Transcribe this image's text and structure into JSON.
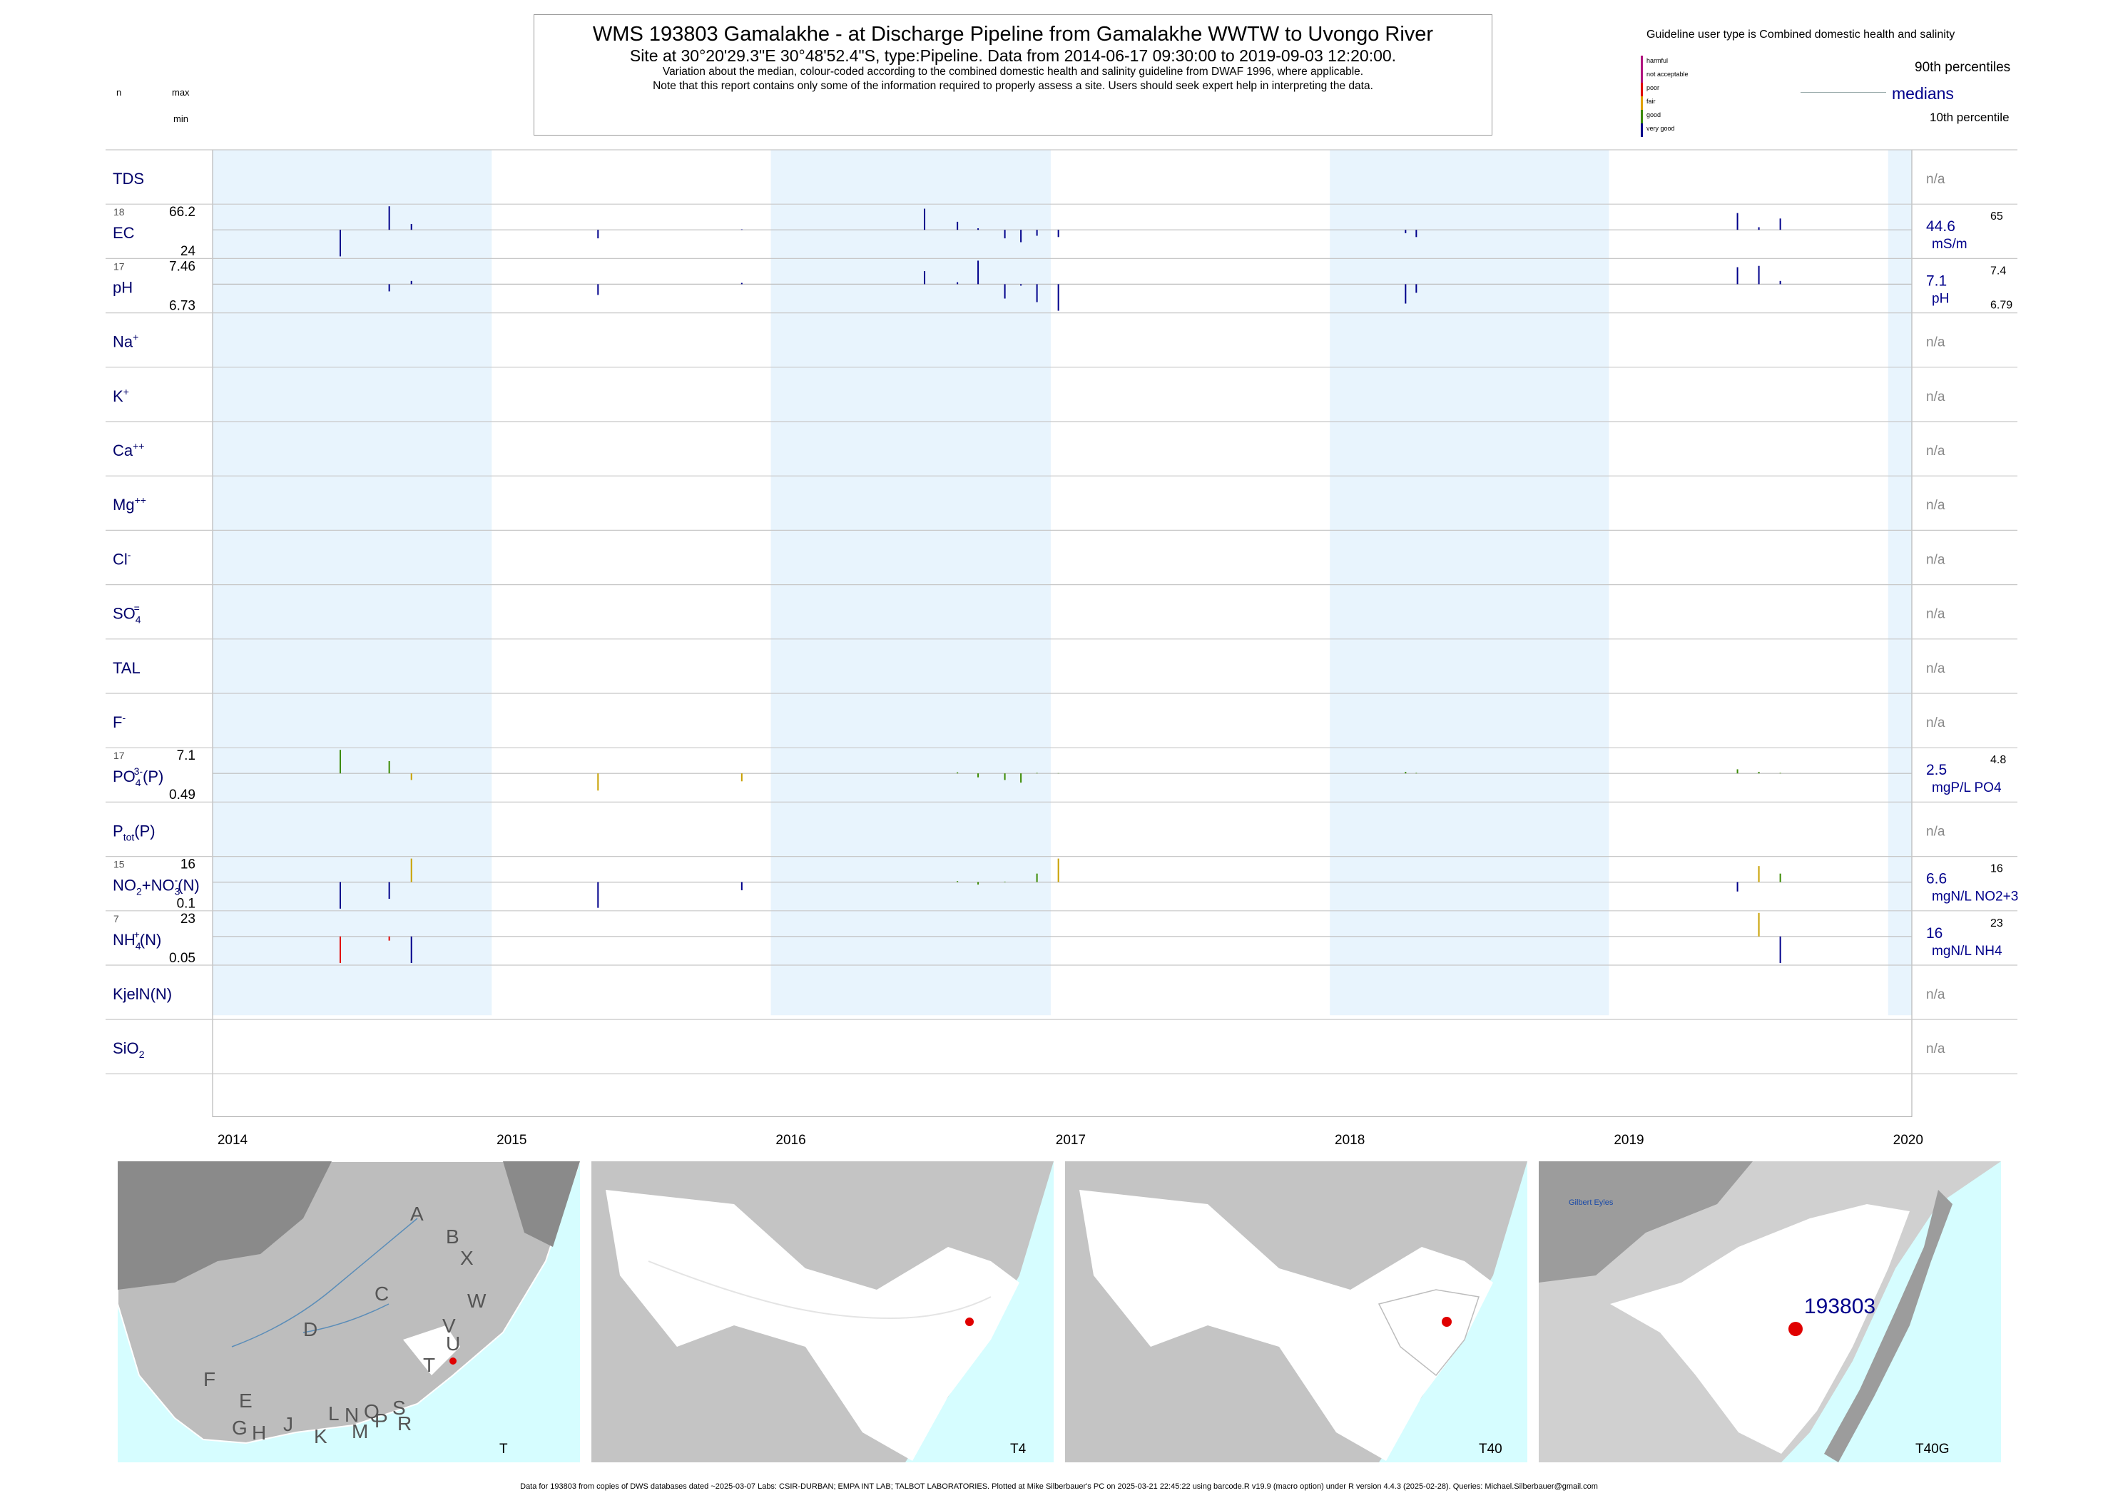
{
  "header": {
    "title": "WMS 193803  Gamalakhe - at Discharge Pipeline from Gamalakhe WWTW to Uvongo River",
    "subtitle": "Site at 30°20'29.3\"E 30°48'52.4\"S, type:Pipeline.  Data from 2014-06-17 09:30:00 to 2019-09-03 12:20:00.",
    "note1": "Variation about the median,  colour-coded according to the combined domestic health and salinity guideline from DWAF 1996, where applicable.",
    "note2": "Note that this report contains only some of the information required to properly assess a site. Users should seek expert help in interpreting the data."
  },
  "topleft": {
    "n": "n",
    "max": "max",
    "min": "min"
  },
  "legend": {
    "title": "Guideline user type is Combined domestic health and salinity",
    "items": [
      {
        "label": "harmful",
        "color": "#b0137e"
      },
      {
        "label": "not acceptable",
        "color": "#b0137e"
      },
      {
        "label": "poor",
        "color": "#e00000"
      },
      {
        "label": "fair",
        "color": "#e0a000"
      },
      {
        "label": "good",
        "color": "#3a8a00"
      },
      {
        "label": "very good",
        "color": "#00008b"
      }
    ],
    "p90": "90th percentiles",
    "medians": "medians",
    "p10": "10th percentile"
  },
  "chart_data": {
    "type": "barcode",
    "x_axis": {
      "range": [
        "2014-01-01",
        "2020-02-01"
      ],
      "ticks": [
        "2014",
        "2015",
        "2016",
        "2017",
        "2018",
        "2019",
        "2020"
      ]
    },
    "rows": [
      {
        "label": "TDS",
        "na": "n/a"
      },
      {
        "label": "EC",
        "n": "18",
        "max": "66.2",
        "min": "24",
        "median": "44.6",
        "unit": "mS/m",
        "p90": "65",
        "p10": "",
        "samples": [
          [
            "2014-06-17",
            24,
            "very good"
          ],
          [
            "2014-08-20",
            66.2,
            "very good"
          ],
          [
            "2014-09-18",
            50,
            "very good"
          ],
          [
            "2015-05-20",
            38,
            "very good"
          ],
          [
            "2015-11-24",
            45,
            "very good"
          ],
          [
            "2016-07-20",
            64,
            "very good"
          ],
          [
            "2016-09-01",
            52,
            "very good"
          ],
          [
            "2016-09-28",
            46,
            "very good"
          ],
          [
            "2016-11-02",
            38,
            "very good"
          ],
          [
            "2016-11-23",
            35,
            "very good"
          ],
          [
            "2016-12-14",
            40,
            "very good"
          ],
          [
            "2017-01-11",
            39,
            "very good"
          ],
          [
            "2018-04-10",
            42,
            "very good"
          ],
          [
            "2018-04-24",
            39,
            "very good"
          ],
          [
            "2019-06-18",
            60,
            "very good"
          ],
          [
            "2019-07-16",
            47,
            "very good"
          ],
          [
            "2019-08-13",
            55,
            "very good"
          ]
        ]
      },
      {
        "label": "pH",
        "n": "17",
        "max": "7.46",
        "min": "6.73",
        "median": "7.1",
        "unit": "pH",
        "p90": "7.4",
        "p10": "6.79",
        "samples": [
          [
            "2014-06-17",
            7.1,
            "very good"
          ],
          [
            "2014-08-20",
            7.0,
            "very good"
          ],
          [
            "2014-09-18",
            7.15,
            "very good"
          ],
          [
            "2015-05-20",
            6.95,
            "very good"
          ],
          [
            "2015-11-24",
            7.12,
            "very good"
          ],
          [
            "2016-07-20",
            7.3,
            "very good"
          ],
          [
            "2016-09-01",
            7.13,
            "very good"
          ],
          [
            "2016-09-28",
            7.46,
            "very good"
          ],
          [
            "2016-11-02",
            6.9,
            "very good"
          ],
          [
            "2016-11-23",
            7.08,
            "very good"
          ],
          [
            "2016-12-14",
            6.85,
            "very good"
          ],
          [
            "2017-01-11",
            6.73,
            "very good"
          ],
          [
            "2018-04-10",
            6.83,
            "very good"
          ],
          [
            "2018-04-24",
            6.98,
            "very good"
          ],
          [
            "2019-06-18",
            7.36,
            "very good"
          ],
          [
            "2019-07-16",
            7.38,
            "very good"
          ],
          [
            "2019-08-13",
            7.15,
            "very good"
          ]
        ]
      },
      {
        "label": "Na",
        "sup": "+",
        "na": "n/a"
      },
      {
        "label": "K",
        "sup": "+",
        "na": "n/a"
      },
      {
        "label": "Ca",
        "sup": "++",
        "na": "n/a"
      },
      {
        "label": "Mg",
        "sup": "++",
        "na": "n/a"
      },
      {
        "label": "Cl",
        "sup": "-",
        "na": "n/a"
      },
      {
        "label": "SO",
        "sub": "4",
        "sup": "=",
        "na": "n/a"
      },
      {
        "label": "TAL",
        "na": "n/a"
      },
      {
        "label": "F",
        "sup": "-",
        "na": "n/a"
      },
      {
        "label": "PO",
        "sub": "4",
        "sup": "3-",
        "suffix": "(P)",
        "n": "17",
        "max": "7.1",
        "min": "0.49",
        "median": "2.5",
        "unit": "mgP/L PO4",
        "p90": "4.8",
        "p10": "",
        "samples": [
          [
            "2014-06-17",
            7.1,
            "good"
          ],
          [
            "2014-08-20",
            4.9,
            "good"
          ],
          [
            "2014-09-18",
            2.0,
            "fair"
          ],
          [
            "2015-05-20",
            1.2,
            "fair"
          ],
          [
            "2015-11-24",
            1.9,
            "fair"
          ],
          [
            "2016-09-01",
            2.7,
            "good"
          ],
          [
            "2016-09-28",
            2.2,
            "good"
          ],
          [
            "2016-11-02",
            2.0,
            "good"
          ],
          [
            "2016-11-23",
            1.8,
            "good"
          ],
          [
            "2016-12-14",
            2.6,
            "good"
          ],
          [
            "2017-01-11",
            2.55,
            "good"
          ],
          [
            "2018-04-10",
            2.8,
            "good"
          ],
          [
            "2018-04-24",
            2.6,
            "good"
          ],
          [
            "2019-06-18",
            3.3,
            "good"
          ],
          [
            "2019-07-16",
            2.8,
            "good"
          ],
          [
            "2019-08-13",
            2.6,
            "good"
          ]
        ]
      },
      {
        "label": "P",
        "sub": "tot",
        "suffix": "(P)",
        "na": "n/a"
      },
      {
        "label": "NO",
        "sub": "2",
        "mid": "+NO",
        "sub2": "3",
        "sup2": "-",
        "suffix": "(N)",
        "n": "15",
        "max": "16",
        "min": "0.1",
        "median": "6.6",
        "unit": "mgN/L NO2+3",
        "p90": "16",
        "p10": "",
        "samples": [
          [
            "2014-06-17",
            0.1,
            "very good"
          ],
          [
            "2014-08-20",
            2.5,
            "very good"
          ],
          [
            "2014-09-18",
            16,
            "fair"
          ],
          [
            "2015-05-20",
            0.3,
            "very good"
          ],
          [
            "2015-11-24",
            4.6,
            "very good"
          ],
          [
            "2016-09-01",
            7.0,
            "good"
          ],
          [
            "2016-09-28",
            6.0,
            "good"
          ],
          [
            "2016-11-02",
            6.8,
            "good"
          ],
          [
            "2016-12-14",
            10,
            "good"
          ],
          [
            "2017-01-11",
            16,
            "fair"
          ],
          [
            "2019-06-18",
            4.3,
            "very good"
          ],
          [
            "2019-07-16",
            13,
            "fair"
          ],
          [
            "2019-08-13",
            10,
            "good"
          ]
        ]
      },
      {
        "label": "NH",
        "sub": "4",
        "sup": "+",
        "suffix": "(N)",
        "n": "7",
        "max": "23",
        "min": "0.05",
        "median": "16",
        "unit": "mgN/L NH4",
        "p90": "23",
        "p10": "",
        "samples": [
          [
            "2014-06-17",
            0.05,
            "poor"
          ],
          [
            "2014-08-20",
            13.5,
            "poor"
          ],
          [
            "2014-09-18",
            0.06,
            "very good"
          ],
          [
            "2019-07-16",
            23,
            "fair"
          ],
          [
            "2019-08-13",
            0.06,
            "very good"
          ]
        ]
      },
      {
        "label": "KjelN(N)",
        "na": "n/a"
      },
      {
        "label": "SiO",
        "sub": "2",
        "na": "n/a"
      }
    ]
  },
  "maps": [
    {
      "label": "T",
      "regions": [
        "A",
        "B",
        "X",
        "C",
        "W",
        "D",
        "V",
        "U",
        "F",
        "T",
        "E",
        "L",
        "N",
        "Q",
        "S",
        "G",
        "H",
        "J",
        "K",
        "M",
        "P",
        "R"
      ]
    },
    {
      "label": "T4"
    },
    {
      "label": "T40"
    },
    {
      "label": "T40G",
      "site": "193803",
      "place": "Gilbert Eyles"
    }
  ],
  "footer": "Data for 193803 from copies of DWS databases dated ~2025-03-07 Labs: CSIR-DURBAN; EMPA INT LAB; TALBOT LABORATORIES. Plotted at Mike Silberbauer's PC on 2025-03-21 22:45:22 using barcode.R v19.9 (macro option) under R version 4.4.3 (2025-02-28). Queries: Michael.Silberbauer@gmail.com"
}
